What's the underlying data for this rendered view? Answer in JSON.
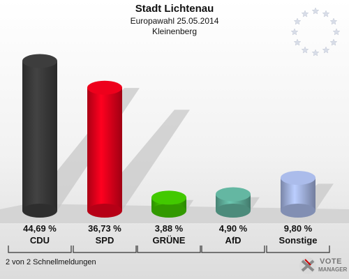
{
  "header": {
    "title": "Stadt Lichtenau",
    "subtitle": "Europawahl 25.05.2014",
    "location": "Kleinenberg"
  },
  "footer": {
    "note": "2 von 2 Schnellmeldungen",
    "logo_top": "VOTE",
    "logo_bottom": "MANAGER"
  },
  "colors": {
    "CDU": "#3a3a3a",
    "SPD": "#e3001b",
    "GRÜNE": "#3fbf00",
    "AfD": "#5fae9a",
    "Sonstige": "#a3b3e0"
  },
  "chart_data": {
    "type": "bar",
    "categories": [
      "CDU",
      "SPD",
      "GRÜNE",
      "AfD",
      "Sonstige"
    ],
    "values": [
      44.69,
      36.73,
      3.88,
      4.9,
      9.8
    ],
    "value_labels": [
      "44,69 %",
      "36,73 %",
      "3,88 %",
      "4,90 %",
      "9,80 %"
    ],
    "title": "Stadt Lichtenau",
    "subtitle": "Europawahl 25.05.2014",
    "ylim": [
      0,
      50
    ],
    "grid": false,
    "legend": "none"
  }
}
